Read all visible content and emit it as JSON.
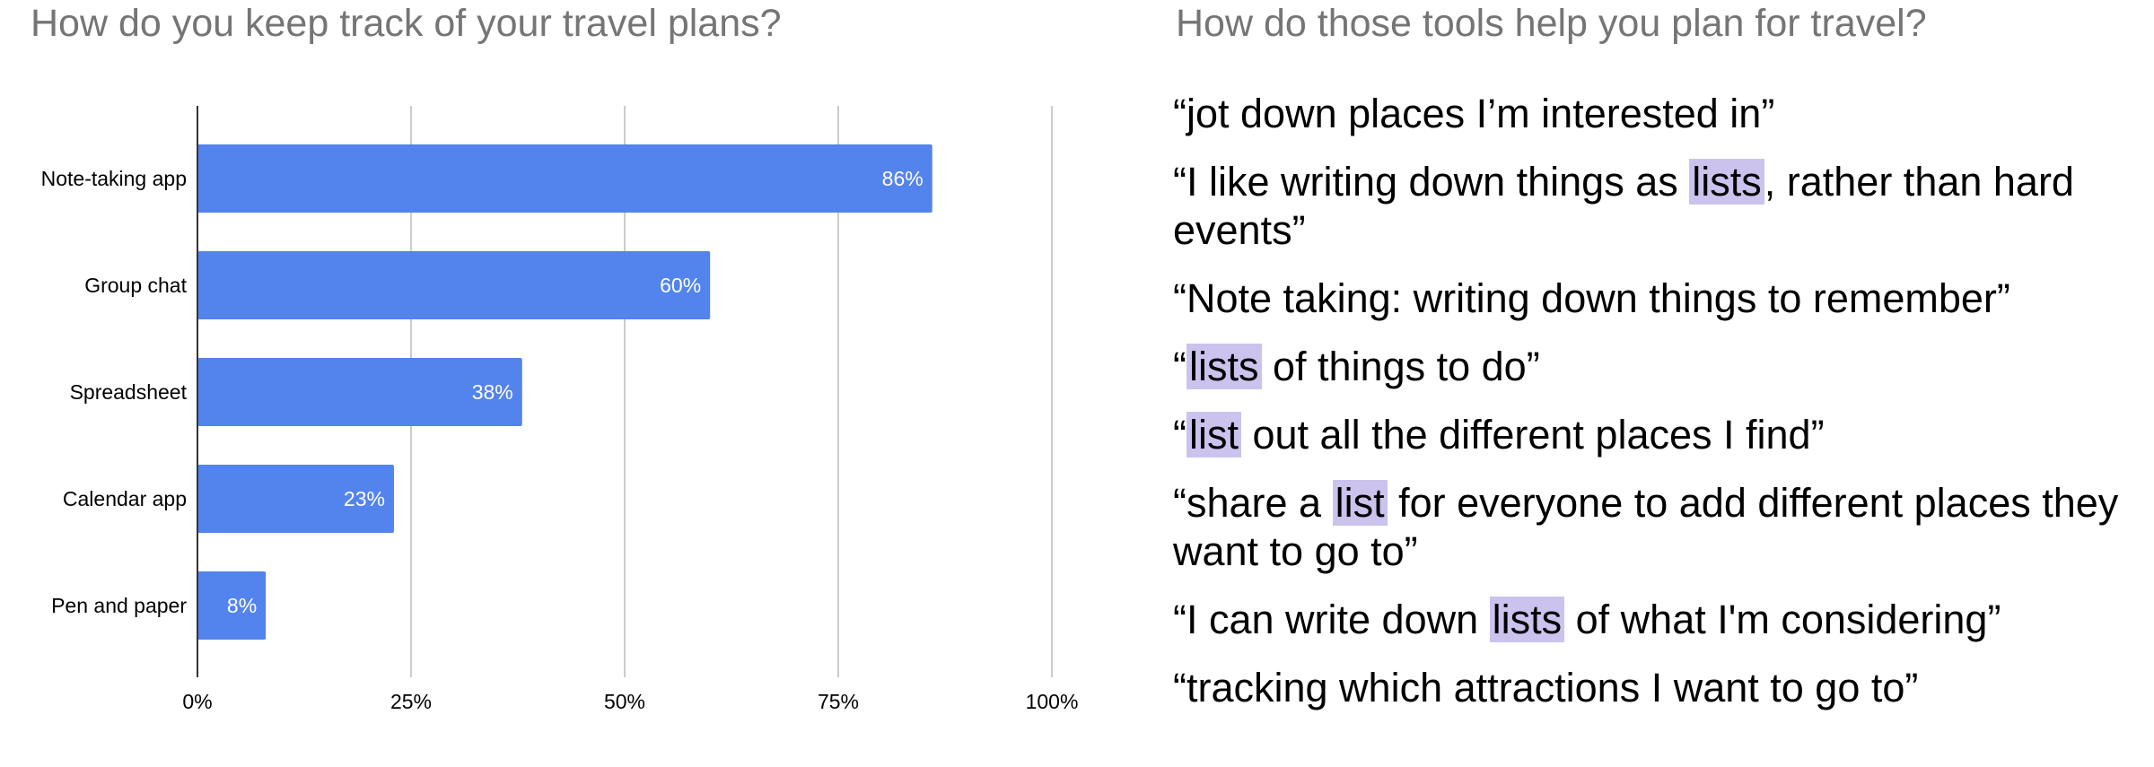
{
  "left_title": "How do you keep track of your travel plans?",
  "right_title": "How do those tools help you plan for travel?",
  "highlight_color": "#cbc3ed",
  "chart_data": {
    "type": "bar",
    "orientation": "horizontal",
    "title": "How do you keep track of your travel plans?",
    "categories": [
      "Note-taking app",
      "Group chat",
      "Spreadsheet",
      "Calendar app",
      "Pen and paper"
    ],
    "values": [
      86,
      60,
      38,
      23,
      8
    ],
    "data_labels": [
      "86%",
      "60%",
      "38%",
      "23%",
      "8%"
    ],
    "xlim": [
      0,
      100
    ],
    "ticks": [
      0,
      25,
      50,
      75,
      100
    ],
    "tick_labels": [
      "0%",
      "25%",
      "50%",
      "75%",
      "100%"
    ],
    "grid": true,
    "bar_color": "#5383ec",
    "gridline_color": "#cccccc"
  },
  "quotes": [
    [
      {
        "t": "“jot down places I’m interested in”"
      }
    ],
    [
      {
        "t": "“I like writing down things as "
      },
      {
        "t": "lists",
        "hl": true
      },
      {
        "t": ", rather than hard events”"
      }
    ],
    [
      {
        "t": "“Note taking: writing down things to remember”"
      }
    ],
    [
      {
        "t": "“"
      },
      {
        "t": "lists",
        "hl": true
      },
      {
        "t": " of things to do”"
      }
    ],
    [
      {
        "t": "“"
      },
      {
        "t": "list",
        "hl": true
      },
      {
        "t": " out all the different places I find”"
      }
    ],
    [
      {
        "t": "“share a "
      },
      {
        "t": "list",
        "hl": true
      },
      {
        "t": " for everyone to add different places they want to go to”"
      }
    ],
    [
      {
        "t": "“I can write down "
      },
      {
        "t": "lists",
        "hl": true
      },
      {
        "t": " of what I'm considering”"
      }
    ],
    [
      {
        "t": "“tracking which attractions I want to go to”"
      }
    ]
  ]
}
